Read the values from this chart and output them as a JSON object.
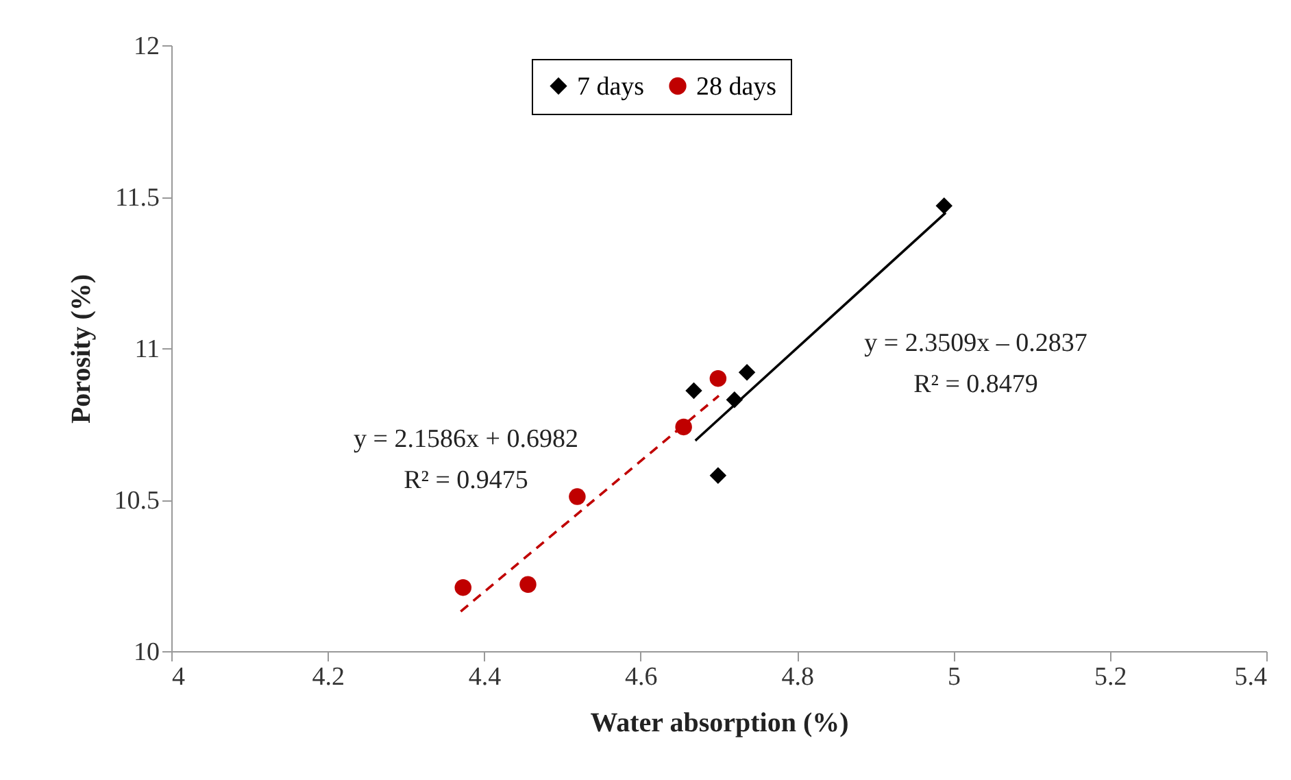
{
  "chart_data": {
    "type": "scatter",
    "xlabel": "Water absorption (%)",
    "ylabel": "Porosity (%)",
    "xlim": [
      4,
      5.4
    ],
    "xticks": [
      4,
      4.2,
      4.4,
      4.6,
      4.8,
      5,
      5.2,
      5.4
    ],
    "ylim": [
      10,
      12
    ],
    "yticks": [
      10,
      10.5,
      11,
      11.5,
      12
    ],
    "grid": false,
    "legend": "top",
    "series": [
      {
        "name": "7 days",
        "color": "#000000",
        "marker": "diamond",
        "x": [
          4.668,
          4.736,
          4.72,
          4.699,
          4.988
        ],
        "values": [
          10.86,
          10.92,
          10.83,
          10.58,
          11.47
        ]
      },
      {
        "name": "28 days",
        "color": "#c00000",
        "marker": "circle",
        "x": [
          4.373,
          4.456,
          4.519,
          4.655,
          4.699
        ],
        "values": [
          10.21,
          10.22,
          10.51,
          10.74,
          10.9
        ]
      },
      {
        "type": "line",
        "color": "#000000",
        "line_style": "solid",
        "marker": "none",
        "x": [
          4.67,
          4.99
        ],
        "values": [
          10.695,
          11.447
        ]
      },
      {
        "type": "line",
        "color": "#c00000",
        "line_style": "dashed",
        "marker": "none",
        "x": [
          4.37,
          4.7
        ],
        "values": [
          10.131,
          10.843
        ]
      }
    ],
    "annotations": [
      "y = 2.3509x – 0.2837",
      "R² = 0.8479",
      "y = 2.1586x + 0.6982",
      "R² = 0.9475"
    ]
  }
}
